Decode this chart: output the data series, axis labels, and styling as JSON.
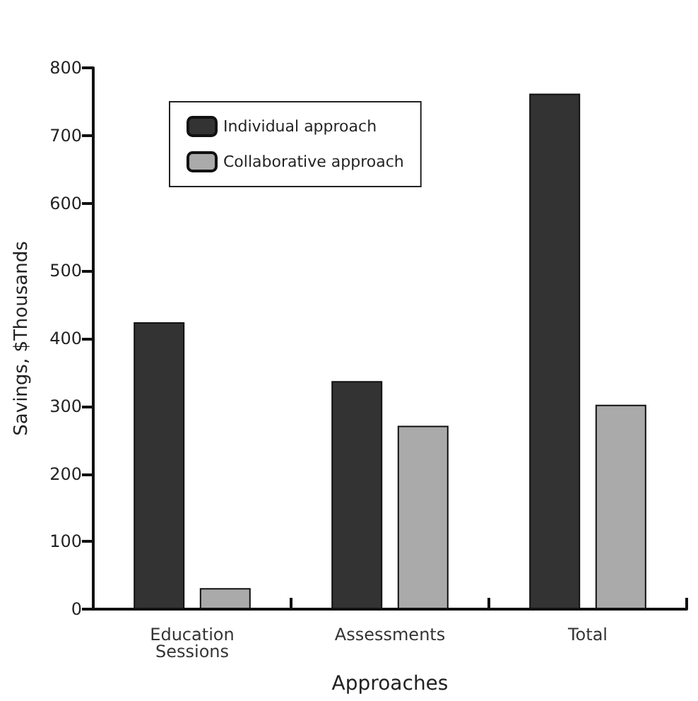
{
  "chart_data": {
    "type": "bar",
    "xlabel": "Approaches",
    "ylabel": "Savings, $Thousands",
    "categories": [
      "Education\nSessions",
      "Assessments",
      "Total"
    ],
    "series": [
      {
        "name": "Individual approach",
        "color": "#333333",
        "values": [
          424,
          337,
          762
        ]
      },
      {
        "name": "Collaborative approach",
        "color": "#aaaaaa",
        "values": [
          31,
          271,
          302
        ]
      }
    ],
    "ylim": [
      0,
      800
    ],
    "yticks": [
      0,
      100,
      200,
      300,
      400,
      500,
      600,
      700,
      800
    ],
    "grid": false,
    "legend": "top left"
  }
}
